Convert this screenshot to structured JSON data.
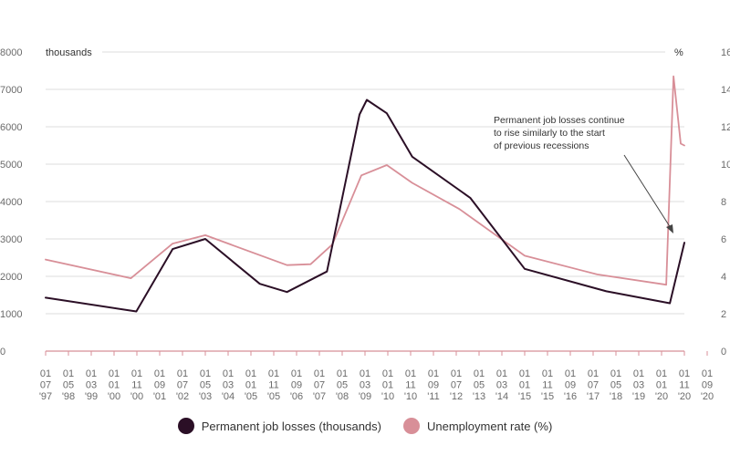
{
  "chart_data": {
    "type": "line",
    "y_left_unit": "thousands",
    "y_right_unit": "%",
    "y_left_ticks": [
      "8000",
      "7000",
      "6000",
      "5000",
      "4000",
      "3000",
      "2000",
      "1000",
      "0"
    ],
    "y_right_ticks": [
      "16",
      "14",
      "12",
      "10",
      "8",
      "6",
      "4",
      "2",
      "0"
    ],
    "ylim_left": [
      0,
      8000
    ],
    "ylim_right": [
      0,
      16
    ],
    "xlim": [
      0,
      23.333
    ],
    "x_tick_top": [
      "01",
      "01",
      "01",
      "01",
      "01",
      "01",
      "01",
      "01",
      "01",
      "01",
      "01",
      "01",
      "01",
      "01",
      "01",
      "01",
      "01",
      "01",
      "01",
      "01",
      "01",
      "01",
      "01",
      "01",
      "01",
      "01",
      "01",
      "01",
      "01",
      "01"
    ],
    "x_tick_mid": [
      "07",
      "05",
      "03",
      "01",
      "11",
      "09",
      "07",
      "05",
      "03",
      "01",
      "11",
      "09",
      "07",
      "05",
      "03",
      "01",
      "11",
      "09",
      "07",
      "05",
      "03",
      "01",
      "11",
      "09",
      "07",
      "05",
      "03",
      "01",
      "11",
      "09"
    ],
    "x_tick_bottom": [
      "'97",
      "'98",
      "'99",
      "'00",
      "'00",
      "'01",
      "'02",
      "'03",
      "'04",
      "'05",
      "'05",
      "'06",
      "'07",
      "'08",
      "'09",
      "'10",
      "'10",
      "'11",
      "'12",
      "'13",
      "'14",
      "'15",
      "'15",
      "'16",
      "'17",
      "'18",
      "'19",
      "'20",
      "'20",
      "'20"
    ],
    "series": [
      {
        "name": "Permanent job losses (thousands)",
        "color": "#2b0f26",
        "axis": "left",
        "x": [
          0,
          4.167,
          5.833,
          7.333,
          9.833,
          11.083,
          12.917,
          14.417,
          14.75,
          15.667,
          16.833,
          19.5,
          22.0,
          25.75,
          28.667,
          29.333
        ],
        "y": [
          1430,
          1060,
          2730,
          3000,
          1800,
          1580,
          2130,
          6330,
          6720,
          6360,
          5200,
          4100,
          2200,
          1600,
          1280,
          2900
        ]
      },
      {
        "name": "Unemployment rate (%)",
        "color": "#d88f98",
        "axis": "right",
        "x": [
          0,
          3.917,
          5.833,
          7.333,
          11.083,
          12.167,
          13.167,
          14.5,
          15.667,
          16.833,
          19.0,
          22.0,
          25.333,
          28.5,
          28.833,
          29.167,
          29.333
        ],
        "y": [
          4.9,
          3.9,
          5.75,
          6.2,
          4.6,
          4.65,
          5.7,
          9.4,
          9.95,
          9.0,
          7.6,
          5.1,
          4.1,
          3.55,
          14.7,
          11.1,
          11.0
        ]
      }
    ],
    "annotation": {
      "lines": [
        "Permanent job losses continue",
        "to rise similarly to the start",
        "of previous recessions"
      ]
    }
  }
}
